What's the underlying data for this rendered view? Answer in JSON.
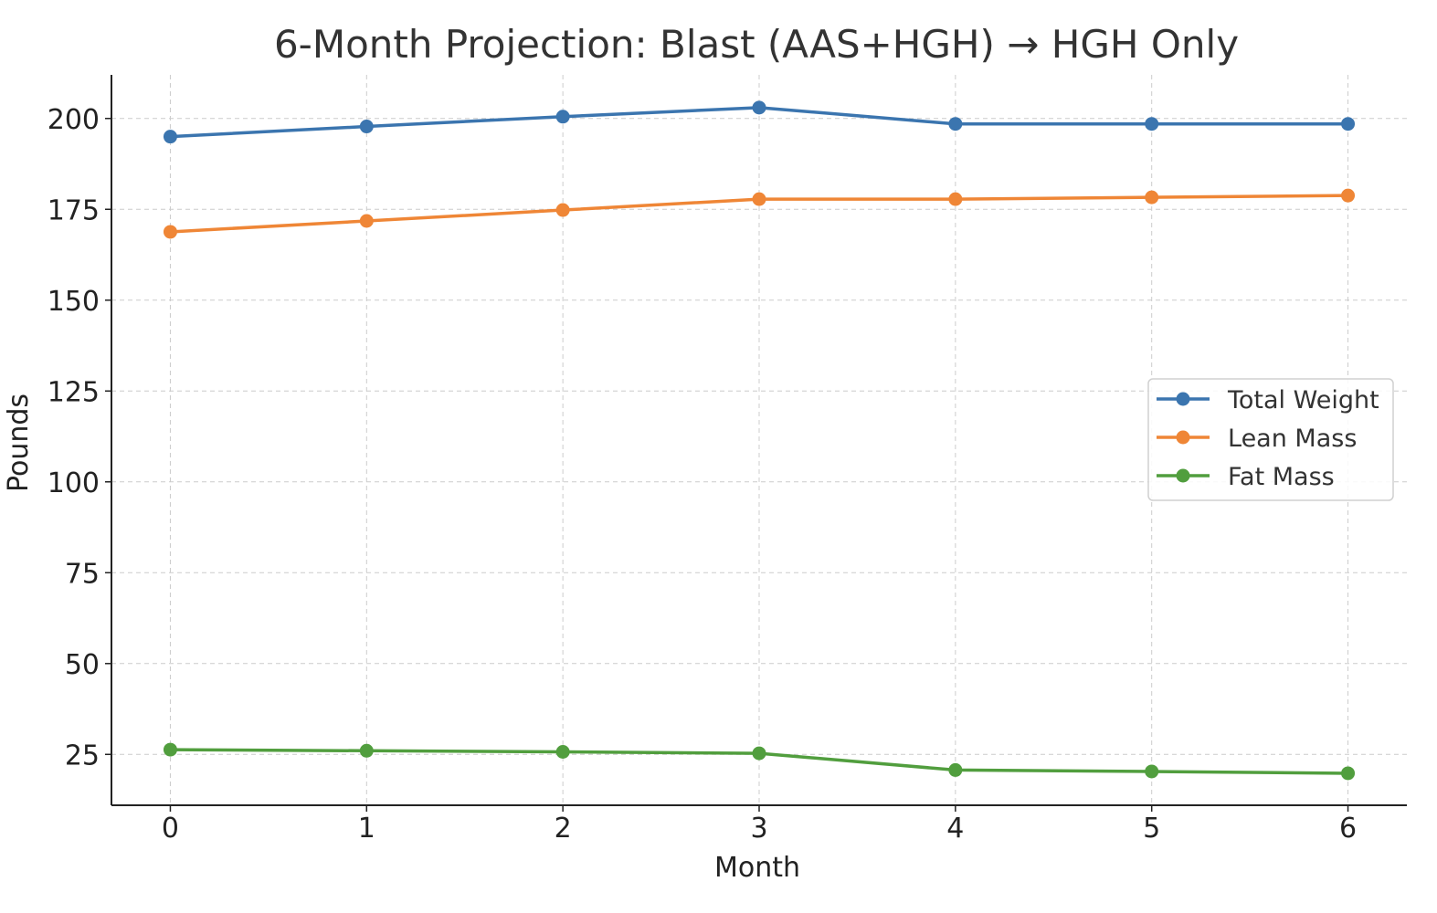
{
  "chart_data": {
    "type": "line",
    "title": "6-Month Projection: Blast (AAS+HGH) → HGH Only",
    "xlabel": "Month",
    "ylabel": "Pounds",
    "x": [
      0,
      1,
      2,
      3,
      4,
      5,
      6
    ],
    "xlim": [
      -0.3,
      6.3
    ],
    "ylim": [
      11,
      212
    ],
    "yticks": [
      25,
      50,
      75,
      100,
      125,
      150,
      175,
      200
    ],
    "grid": true,
    "legend_position": "center-right",
    "series": [
      {
        "name": "Total Weight",
        "color": "#3b75af",
        "values": [
          195,
          197.8,
          200.5,
          203,
          198.5,
          198.5,
          198.5
        ]
      },
      {
        "name": "Lean Mass",
        "color": "#ef8636",
        "values": [
          168.8,
          171.8,
          174.8,
          177.8,
          177.8,
          178.3,
          178.8
        ]
      },
      {
        "name": "Fat Mass",
        "color": "#519e3e",
        "values": [
          26.3,
          26,
          25.7,
          25.3,
          20.7,
          20.3,
          19.8
        ]
      }
    ]
  }
}
